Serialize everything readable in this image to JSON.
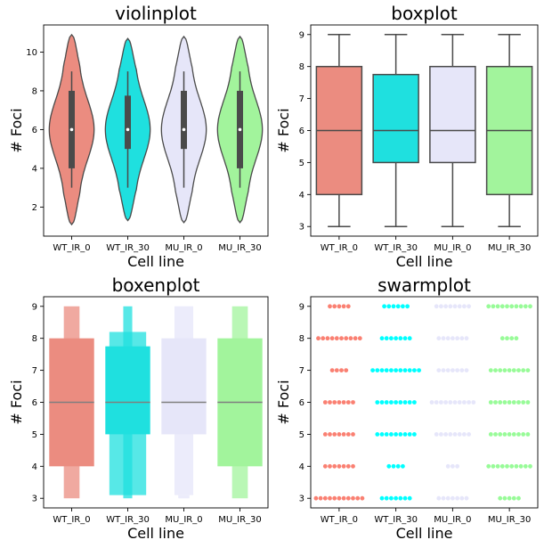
{
  "colors": {
    "WT_IR_0": "#eb8c80",
    "WT_IR_30": "#1fe0df",
    "MU_IR_0": "#e6e6f9",
    "MU_IR_30": "#a2f49c",
    "swarm": [
      "#fa8072",
      "#00ffff",
      "#e6e6fa",
      "#98fb98"
    ],
    "line": "#4a4a4a"
  },
  "chart_data": [
    {
      "type": "violin",
      "title": "violinplot",
      "xlabel": "Cell line",
      "ylabel": "# Foci",
      "categories": [
        "WT_IR_0",
        "WT_IR_30",
        "MU_IR_0",
        "MU_IR_30"
      ],
      "yticks": [
        2,
        4,
        6,
        8,
        10
      ],
      "ylim": [
        0.5,
        11.4
      ],
      "series": [
        {
          "name": "WT_IR_0",
          "q1": 4,
          "median": 6,
          "q3": 8,
          "whisker_low": 3,
          "whisker_high": 9,
          "kde_min": 1.1,
          "kde_max": 10.9
        },
        {
          "name": "WT_IR_30",
          "q1": 5,
          "median": 6,
          "q3": 7.75,
          "whisker_low": 3,
          "whisker_high": 9,
          "kde_min": 1.3,
          "kde_max": 10.7
        },
        {
          "name": "MU_IR_0",
          "q1": 5,
          "median": 6,
          "q3": 8,
          "whisker_low": 3,
          "whisker_high": 9,
          "kde_min": 1.2,
          "kde_max": 10.8
        },
        {
          "name": "MU_IR_30",
          "q1": 4,
          "median": 6,
          "q3": 8,
          "whisker_low": 3,
          "whisker_high": 9,
          "kde_min": 1.2,
          "kde_max": 10.8
        }
      ]
    },
    {
      "type": "box",
      "title": "boxplot",
      "xlabel": "Cell line",
      "ylabel": "# Foci",
      "categories": [
        "WT_IR_0",
        "WT_IR_30",
        "MU_IR_0",
        "MU_IR_30"
      ],
      "yticks": [
        3,
        4,
        5,
        6,
        7,
        8,
        9
      ],
      "ylim": [
        2.7,
        9.3
      ],
      "series": [
        {
          "name": "WT_IR_0",
          "whisker_low": 3,
          "q1": 4,
          "median": 6,
          "q3": 8,
          "whisker_high": 9
        },
        {
          "name": "WT_IR_30",
          "whisker_low": 3,
          "q1": 5,
          "median": 6,
          "q3": 7.75,
          "whisker_high": 9
        },
        {
          "name": "MU_IR_0",
          "whisker_low": 3,
          "q1": 5,
          "median": 6,
          "q3": 8,
          "whisker_high": 9
        },
        {
          "name": "MU_IR_30",
          "whisker_low": 3,
          "q1": 4,
          "median": 6,
          "q3": 8,
          "whisker_high": 9
        }
      ]
    },
    {
      "type": "boxen",
      "title": "boxenplot",
      "xlabel": "Cell line",
      "ylabel": "# Foci",
      "categories": [
        "WT_IR_0",
        "WT_IR_30",
        "MU_IR_0",
        "MU_IR_30"
      ],
      "yticks": [
        3,
        4,
        5,
        6,
        7,
        8,
        9
      ],
      "ylim": [
        2.7,
        9.3
      ],
      "series": [
        {
          "name": "WT_IR_0",
          "median": 6,
          "boxes": [
            {
              "low": 4,
              "high": 8,
              "width": 1.0
            },
            {
              "low": 3,
              "high": 9,
              "width": 0.35
            }
          ]
        },
        {
          "name": "WT_IR_30",
          "median": 6,
          "boxes": [
            {
              "low": 5,
              "high": 7.75,
              "width": 1.0
            },
            {
              "low": 3.1,
              "high": 8.2,
              "width": 0.82
            },
            {
              "low": 3.0,
              "high": 9,
              "width": 0.2
            }
          ]
        },
        {
          "name": "MU_IR_0",
          "median": 6,
          "boxes": [
            {
              "low": 5,
              "high": 8,
              "width": 1.0
            },
            {
              "low": 3.1,
              "high": 9,
              "width": 0.42
            },
            {
              "low": 3.0,
              "high": 3.1,
              "width": 0.25
            }
          ]
        },
        {
          "name": "MU_IR_30",
          "median": 6,
          "boxes": [
            {
              "low": 4,
              "high": 8,
              "width": 1.0
            },
            {
              "low": 3,
              "high": 9,
              "width": 0.35
            }
          ]
        }
      ]
    },
    {
      "type": "scatter",
      "title": "swarmplot",
      "xlabel": "Cell line",
      "ylabel": "# Foci",
      "categories": [
        "WT_IR_0",
        "WT_IR_30",
        "MU_IR_0",
        "MU_IR_30"
      ],
      "yticks": [
        3,
        4,
        5,
        6,
        7,
        8,
        9
      ],
      "ylim": [
        2.7,
        9.3
      ],
      "counts_by_value": [
        {
          "name": "WT_IR_0",
          "counts": {
            "3": 11,
            "4": 7,
            "5": 7,
            "6": 7,
            "7": 4,
            "8": 10,
            "9": 5
          }
        },
        {
          "name": "WT_IR_30",
          "counts": {
            "3": 7,
            "4": 4,
            "5": 9,
            "6": 9,
            "7": 11,
            "8": 7,
            "9": 6
          }
        },
        {
          "name": "MU_IR_0",
          "counts": {
            "3": 7,
            "4": 3,
            "5": 8,
            "6": 10,
            "7": 7,
            "8": 7,
            "9": 8
          }
        },
        {
          "name": "MU_IR_30",
          "counts": {
            "3": 5,
            "4": 10,
            "5": 9,
            "6": 9,
            "7": 9,
            "8": 4,
            "9": 10
          }
        }
      ]
    }
  ]
}
